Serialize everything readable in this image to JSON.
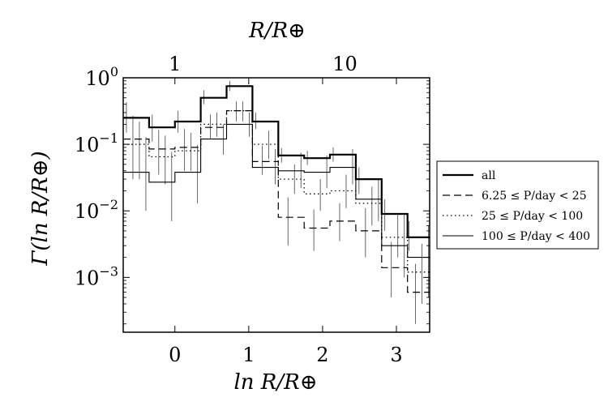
{
  "chart_data": {
    "type": "line",
    "drawstyle": "steps",
    "xlabel": "ln R/R⊕",
    "ylabel": "Γ(ln R/R⊕)",
    "top_xlabel": "R/R⊕",
    "yscale": "log",
    "xlim": [
      -0.7,
      3.45
    ],
    "ylim": [
      0.00015,
      1.0
    ],
    "x_ticks": [
      0,
      1,
      2,
      3
    ],
    "x_tick_labels": [
      "0",
      "1",
      "2",
      "3"
    ],
    "top_ticks": [
      1,
      10
    ],
    "top_tick_labels": [
      "1",
      "10"
    ],
    "y_ticks": [
      1,
      0.1,
      0.01,
      0.001
    ],
    "y_tick_labels": [
      {
        "base": "10",
        "exp": "0"
      },
      {
        "base": "10",
        "exp": "−1"
      },
      {
        "base": "10",
        "exp": "−2"
      },
      {
        "base": "10",
        "exp": "−3"
      }
    ],
    "grid": false,
    "legend_placement": "outside right",
    "bin_edges": [
      -0.7,
      -0.35,
      0.0,
      0.35,
      0.7,
      1.05,
      1.4,
      1.75,
      2.1,
      2.45,
      2.8,
      3.15,
      3.45
    ],
    "series": [
      {
        "name": "all",
        "style": "solid-thick",
        "values": [
          0.25,
          0.18,
          0.22,
          0.5,
          0.75,
          0.22,
          0.068,
          0.062,
          0.07,
          0.03,
          0.009,
          0.004
        ],
        "err_low": [
          0.1,
          0.07,
          0.07,
          0.1,
          0.12,
          0.05,
          0.015,
          0.013,
          0.015,
          0.012,
          0.004,
          0.0015
        ],
        "err_high": [
          0.18,
          0.1,
          0.1,
          0.15,
          0.15,
          0.08,
          0.02,
          0.018,
          0.02,
          0.015,
          0.006,
          0.003
        ]
      },
      {
        "name": "6.25 ≤ P/day < 25",
        "style": "dashed",
        "values": [
          0.12,
          0.085,
          0.09,
          0.18,
          0.32,
          0.055,
          0.008,
          0.0055,
          0.007,
          0.005,
          0.0014,
          0.0006
        ],
        "err_low": [
          0.09,
          0.05,
          0.05,
          0.06,
          0.1,
          0.02,
          0.005,
          0.003,
          0.0035,
          0.003,
          0.0009,
          0.0004
        ],
        "err_high": [
          0.15,
          0.08,
          0.08,
          0.1,
          0.12,
          0.04,
          0.008,
          0.005,
          0.006,
          0.006,
          0.002,
          0.001
        ]
      },
      {
        "name": "25 ≤ P/day < 100",
        "style": "dotted",
        "values": [
          0.1,
          0.065,
          0.08,
          0.2,
          0.32,
          0.1,
          0.03,
          0.018,
          0.02,
          0.013,
          0.004,
          0.0012
        ],
        "err_low": [
          0.07,
          0.04,
          0.04,
          0.07,
          0.1,
          0.04,
          0.012,
          0.008,
          0.009,
          0.007,
          0.002,
          0.0008
        ],
        "err_high": [
          0.12,
          0.07,
          0.07,
          0.1,
          0.12,
          0.06,
          0.02,
          0.012,
          0.015,
          0.01,
          0.005,
          0.002
        ]
      },
      {
        "name": "100 ≤ P/day < 400",
        "style": "solid-thin",
        "values": [
          0.038,
          0.027,
          0.038,
          0.12,
          0.2,
          0.045,
          0.04,
          0.038,
          0.045,
          0.015,
          0.003,
          0.002
        ],
        "err_low": [
          0.028,
          0.02,
          0.025,
          0.05,
          0.07,
          0.02,
          0.018,
          0.016,
          0.02,
          0.008,
          0.002,
          0.0015
        ],
        "err_high": [
          0.09,
          0.05,
          0.06,
          0.08,
          0.1,
          0.04,
          0.035,
          0.03,
          0.04,
          0.015,
          0.006,
          0.004
        ]
      }
    ]
  }
}
